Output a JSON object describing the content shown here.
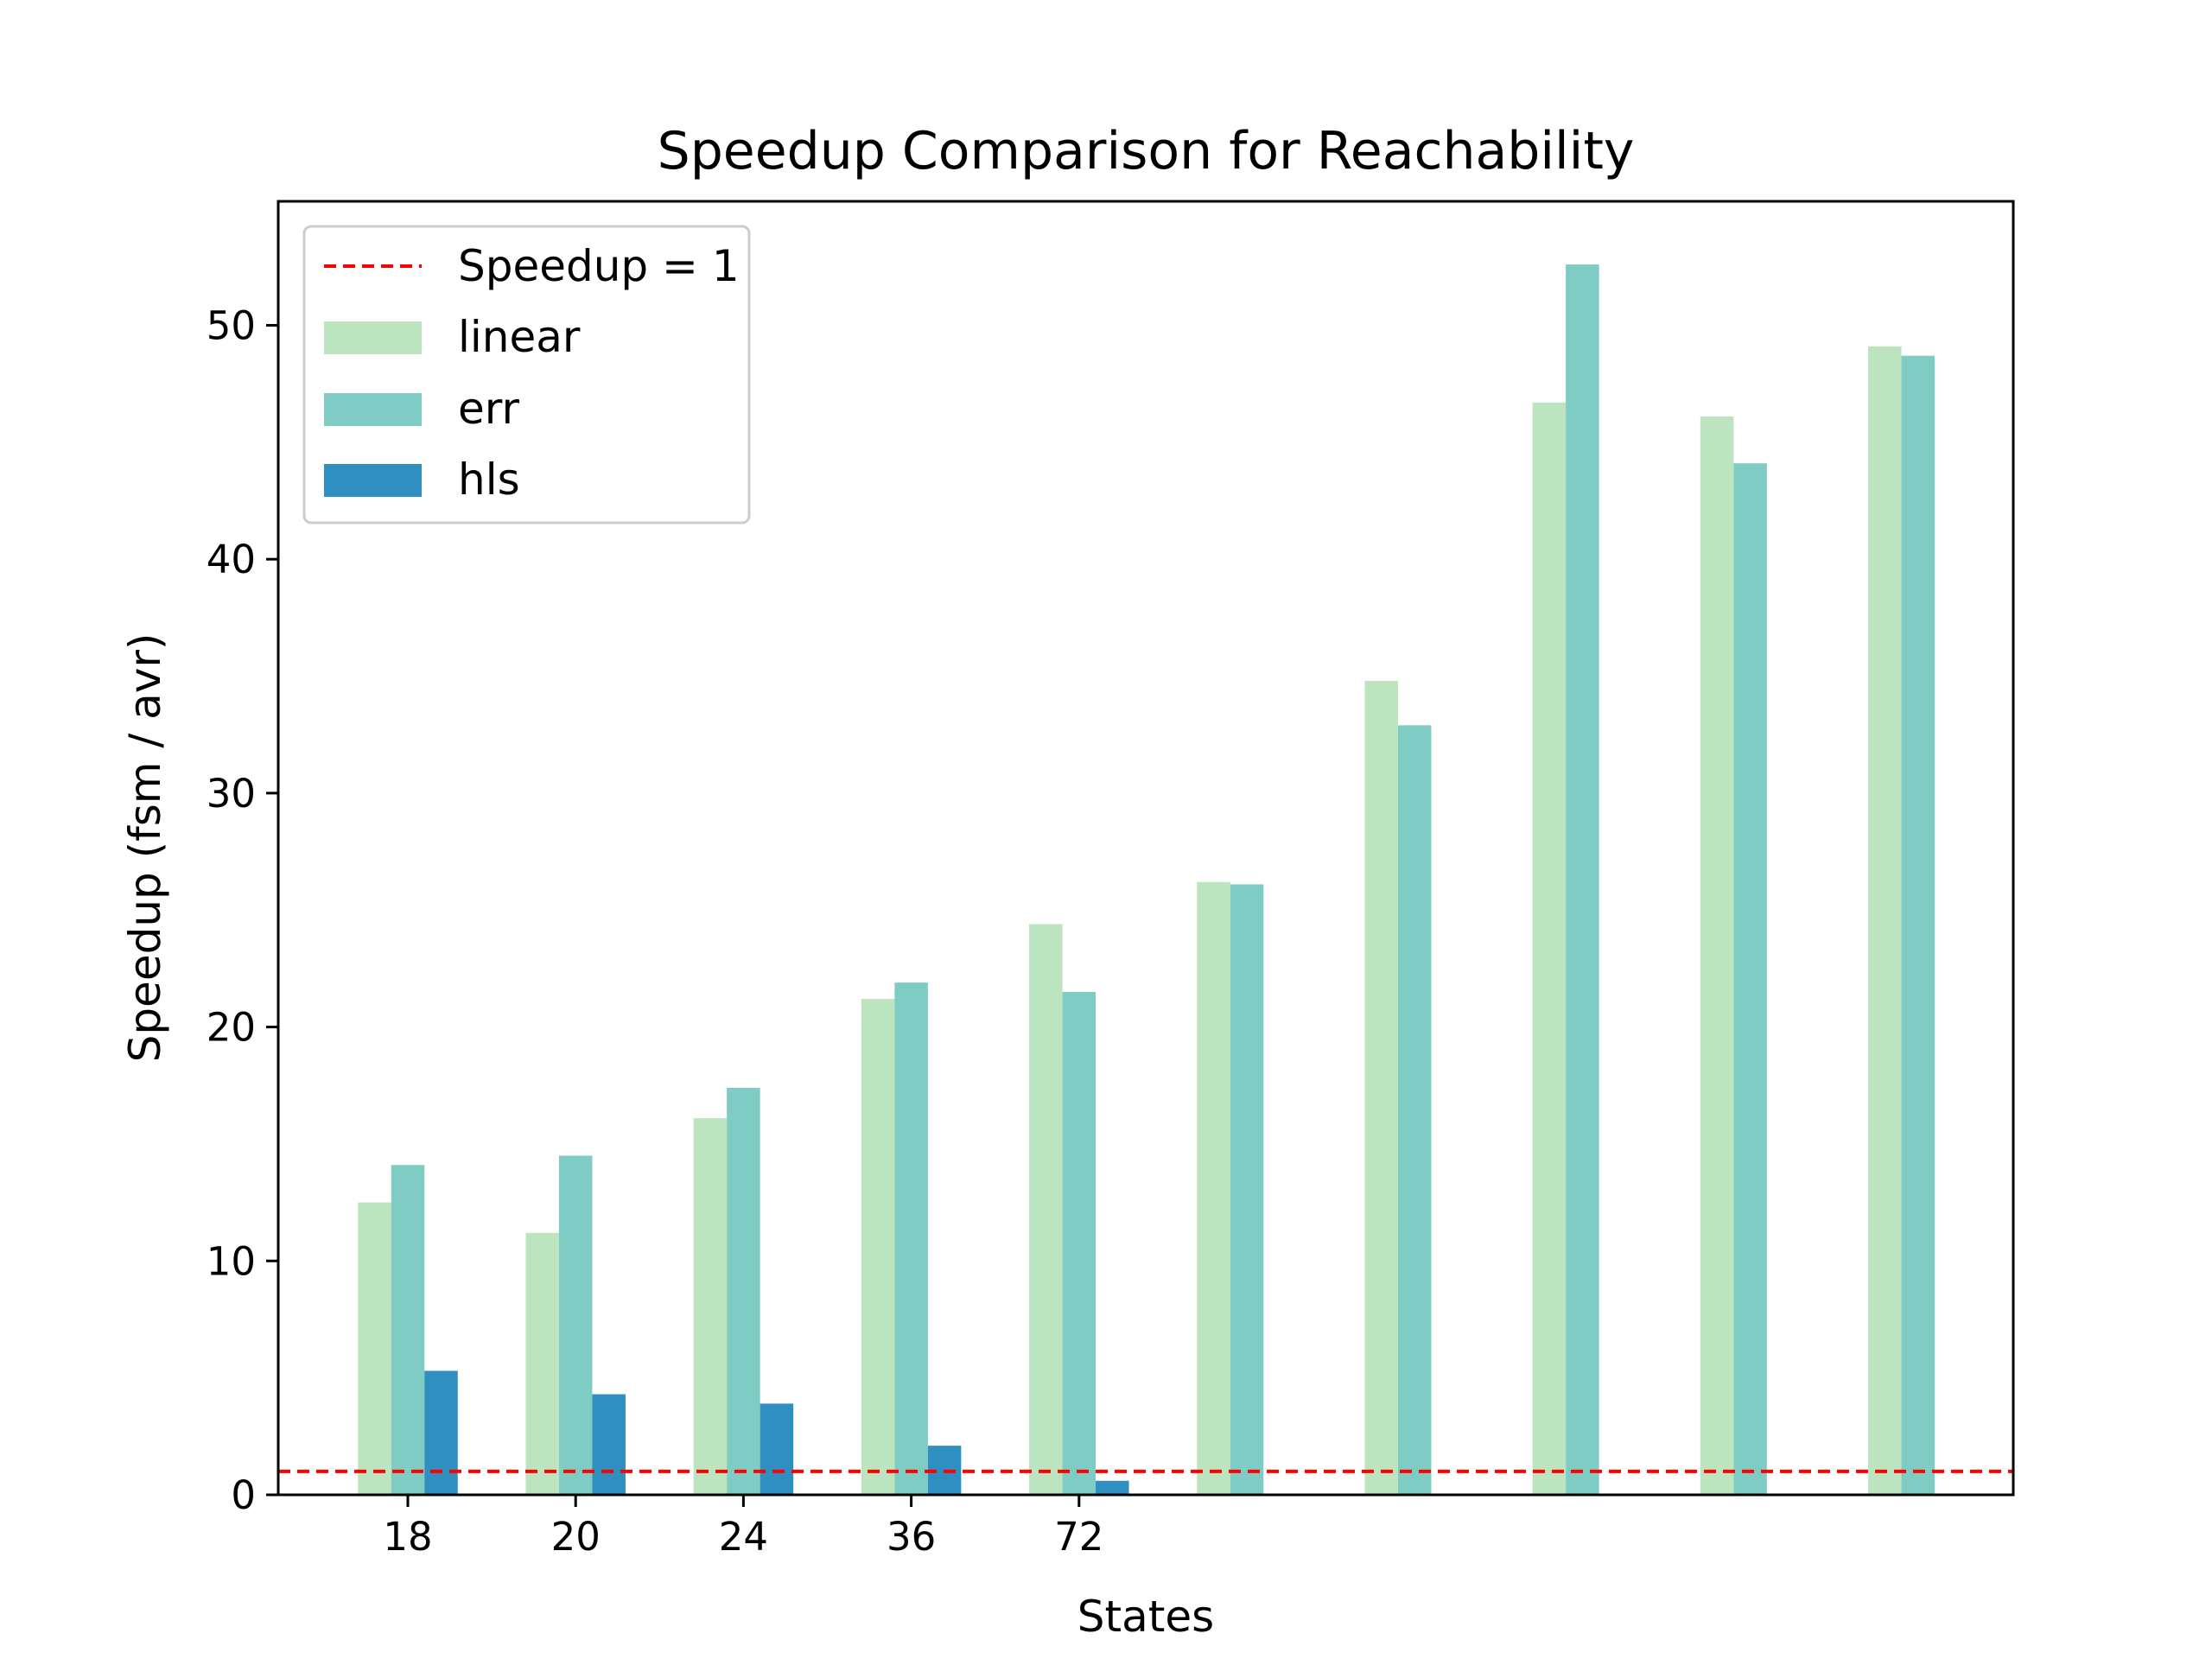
{
  "chart_data": {
    "type": "bar",
    "title": "Speedup Comparison for Reachability",
    "xlabel": "States",
    "ylabel": "Speedup (fsm / avr)",
    "ylim": [
      0,
      55.3
    ],
    "yticks": [
      0,
      10,
      20,
      30,
      40,
      50
    ],
    "categories": [
      "18",
      "20",
      "24",
      "36",
      "72",
      "",
      "",
      "",
      "",
      ""
    ],
    "grid": false,
    "legend_position": "top-left",
    "reference_line": {
      "label": "Speedup = 1",
      "y": 1,
      "color": "#ff0000",
      "style": "dashed"
    },
    "series": [
      {
        "name": "linear",
        "color": "#bbe4bf",
        "values": [
          12.5,
          11.2,
          16.1,
          21.2,
          24.4,
          26.2,
          34.8,
          46.7,
          46.1,
          49.1
        ]
      },
      {
        "name": "err",
        "color": "#7fccc4",
        "values": [
          14.1,
          14.5,
          17.4,
          21.9,
          21.5,
          26.1,
          32.9,
          52.6,
          44.1,
          48.7
        ]
      },
      {
        "name": "hls",
        "color": "#2e8fc0",
        "values": [
          5.3,
          4.3,
          3.9,
          2.1,
          0.6,
          null,
          null,
          null,
          null,
          null
        ]
      }
    ]
  }
}
